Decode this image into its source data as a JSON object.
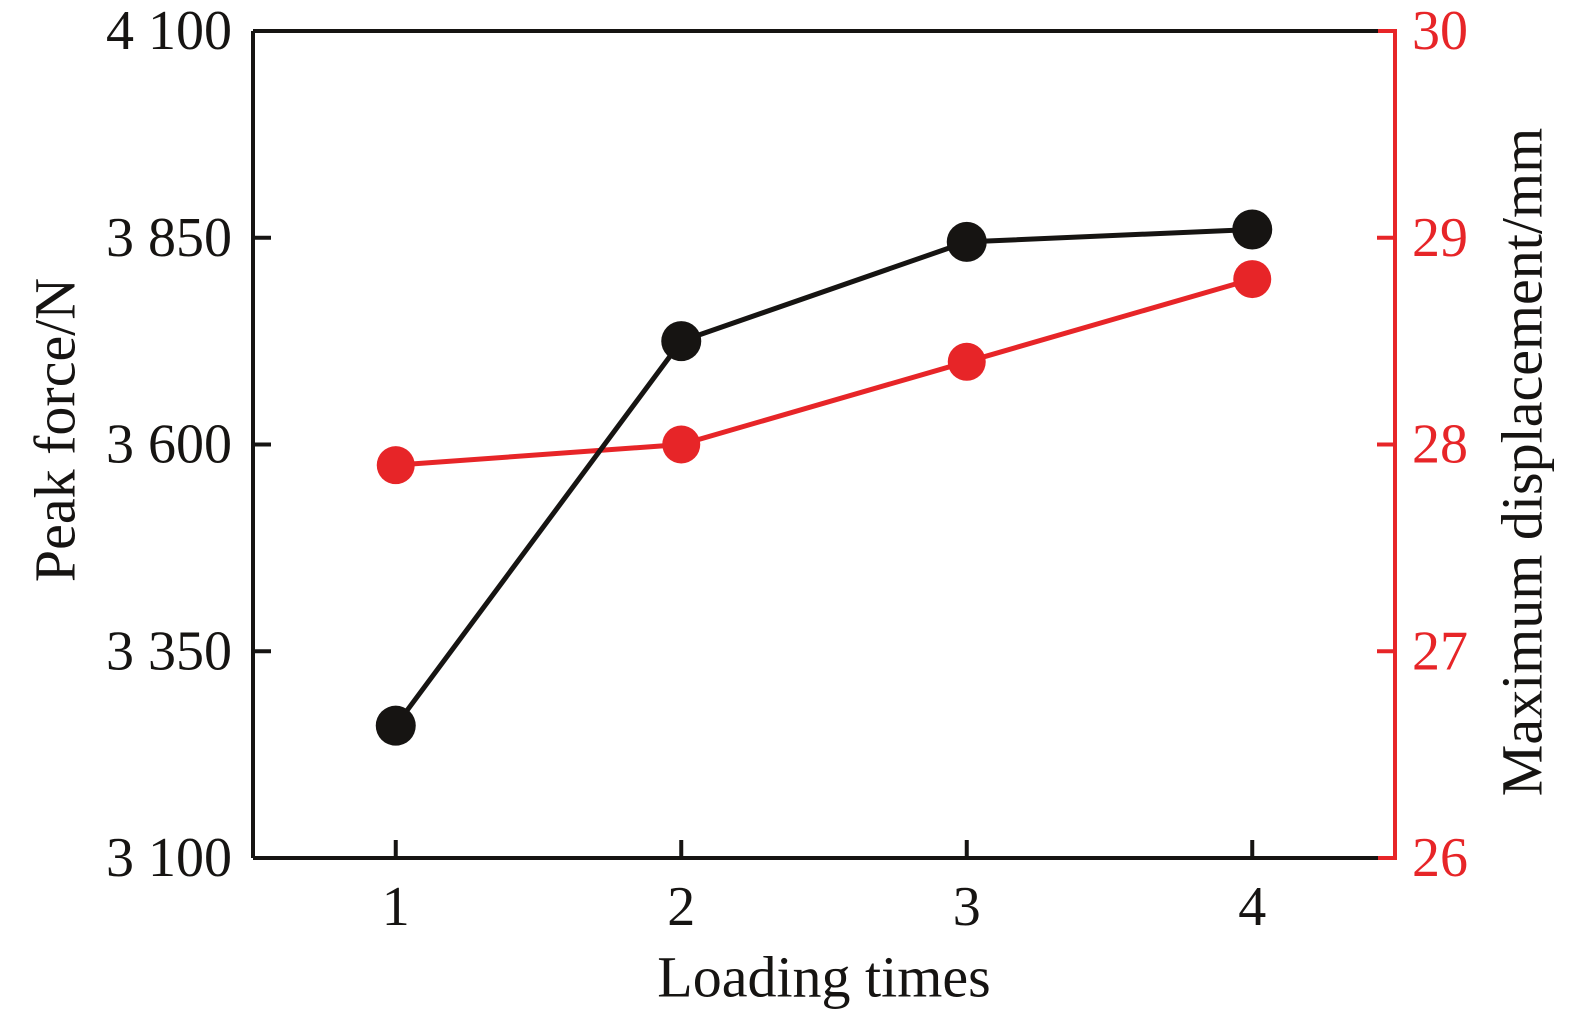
{
  "figure": {
    "background": "#ffffff",
    "axis_color": "#161412",
    "right_axis_color": "#e72528"
  },
  "chart_data": {
    "type": "line",
    "x": [
      1,
      2,
      3,
      4
    ],
    "x_tick_labels": [
      "1",
      "2",
      "3",
      "4"
    ],
    "xlabel": "Loading times",
    "grid": false,
    "legend": "none",
    "marker": "circle",
    "series": [
      {
        "name": "Peak force",
        "axis": "left",
        "color": "#161412",
        "values": [
          3260,
          3725,
          3845,
          3860
        ]
      },
      {
        "name": "Maximum displacement",
        "axis": "right",
        "color": "#e72528",
        "values": [
          27.9,
          28.0,
          28.4,
          28.8
        ]
      }
    ],
    "left_axis": {
      "label": "Peak force/N",
      "min": 3100,
      "max": 4100,
      "ticks": [
        3100,
        3350,
        3600,
        3850,
        4100
      ],
      "tick_labels": [
        "3 100",
        "3 350",
        "3 600",
        "3 850",
        "4 100"
      ],
      "color": "#161412"
    },
    "right_axis": {
      "label": "Maximum displacement/mm",
      "min": 26,
      "max": 30,
      "ticks": [
        26,
        27,
        28,
        29,
        30
      ],
      "tick_labels": [
        "26",
        "27",
        "28",
        "29",
        "30"
      ],
      "color": "#e72528",
      "label_color": "#161412"
    }
  }
}
